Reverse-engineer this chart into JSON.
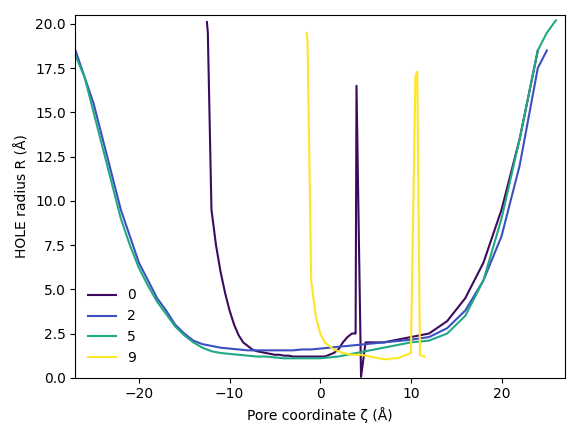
{
  "title": "",
  "xlabel": "Pore coordinate ζ (Å)",
  "ylabel": "HOLE radius R (Å)",
  "legend_labels": [
    "0",
    "2",
    "5",
    "9"
  ],
  "colors": [
    "#3d0a5e",
    "#3b50c0",
    "#22a884",
    "#fde725"
  ],
  "xlim": [
    -27,
    27
  ],
  "ylim": [
    0,
    20.5
  ],
  "figsize": [
    5.8,
    4.38
  ],
  "dpi": 100,
  "series": {
    "0": {
      "zeta": [
        -12.5,
        -12.4,
        -12.0,
        -11.5,
        -11.0,
        -10.5,
        -10.0,
        -9.5,
        -9.0,
        -8.5,
        -8.0,
        -7.5,
        -7.0,
        -6.5,
        -6.0,
        -5.5,
        -5.0,
        -4.5,
        -4.0,
        -3.5,
        -3.0,
        -2.5,
        -2.0,
        -1.5,
        -1.0,
        -0.5,
        0.0,
        0.5,
        1.0,
        1.5,
        2.0,
        2.5,
        3.0,
        3.5,
        3.6,
        3.7,
        3.8,
        3.9,
        4.0,
        4.5,
        5.0,
        5.1,
        5.2,
        5.3,
        5.4,
        5.5,
        6.0,
        6.5,
        7.0,
        7.5,
        8.0,
        9.0,
        10.0,
        12.0,
        14.0,
        16.0,
        18.0,
        20.0,
        22.0,
        24.0
      ],
      "R": [
        20.1,
        19.5,
        9.5,
        7.5,
        6.0,
        4.8,
        3.8,
        3.0,
        2.4,
        2.0,
        1.8,
        1.6,
        1.5,
        1.45,
        1.4,
        1.35,
        1.3,
        1.3,
        1.25,
        1.25,
        1.2,
        1.2,
        1.2,
        1.2,
        1.2,
        1.2,
        1.2,
        1.2,
        1.3,
        1.4,
        1.6,
        2.0,
        2.3,
        2.5,
        2.5,
        2.5,
        2.5,
        2.5,
        16.5,
        0.05,
        2.0,
        2.0,
        2.0,
        2.0,
        2.0,
        2.0,
        2.0,
        2.0,
        2.0,
        2.05,
        2.1,
        2.2,
        2.3,
        2.5,
        3.2,
        4.5,
        6.5,
        9.5,
        13.5,
        18.5
      ]
    },
    "2": {
      "zeta": [
        -27,
        -26,
        -25,
        -24,
        -23,
        -22,
        -21,
        -20,
        -19,
        -18,
        -17,
        -16,
        -15,
        -14,
        -13,
        -12,
        -11,
        -10,
        -9,
        -8,
        -7,
        -6,
        -5,
        -4,
        -3,
        -2,
        -1,
        0,
        1,
        2,
        3,
        4,
        5,
        6,
        7,
        8,
        9,
        10,
        12,
        14,
        16,
        18,
        20,
        22,
        24,
        25
      ],
      "R": [
        18.5,
        17.0,
        15.5,
        13.5,
        11.5,
        9.5,
        8.0,
        6.5,
        5.5,
        4.5,
        3.8,
        3.0,
        2.5,
        2.1,
        1.9,
        1.8,
        1.7,
        1.65,
        1.6,
        1.55,
        1.55,
        1.55,
        1.55,
        1.55,
        1.55,
        1.6,
        1.6,
        1.65,
        1.7,
        1.75,
        1.8,
        1.85,
        1.9,
        1.95,
        2.0,
        2.05,
        2.1,
        2.15,
        2.3,
        2.8,
        3.8,
        5.5,
        8.0,
        12.0,
        17.5,
        18.5
      ]
    },
    "5": {
      "zeta": [
        -27,
        -26,
        -25,
        -24,
        -23,
        -22,
        -21,
        -20,
        -19,
        -18,
        -17,
        -16,
        -15,
        -14,
        -13,
        -12,
        -11,
        -10,
        -9,
        -8,
        -7,
        -6,
        -5,
        -4,
        -3,
        -2,
        -1,
        0,
        1,
        2,
        3,
        4,
        5,
        6,
        7,
        8,
        9,
        10,
        12,
        14,
        16,
        18,
        20,
        22,
        24,
        25,
        26
      ],
      "R": [
        18.2,
        17.0,
        15.0,
        13.0,
        11.0,
        9.0,
        7.5,
        6.2,
        5.2,
        4.3,
        3.6,
        2.9,
        2.4,
        2.0,
        1.7,
        1.5,
        1.4,
        1.35,
        1.3,
        1.25,
        1.2,
        1.2,
        1.15,
        1.1,
        1.1,
        1.1,
        1.1,
        1.1,
        1.15,
        1.2,
        1.3,
        1.4,
        1.5,
        1.6,
        1.7,
        1.8,
        1.9,
        2.0,
        2.1,
        2.5,
        3.5,
        5.5,
        9.0,
        13.5,
        18.5,
        19.5,
        20.2
      ]
    },
    "9": {
      "zeta": [
        -1.5,
        -1.4,
        -1.0,
        -0.5,
        0.0,
        0.5,
        1.0,
        1.5,
        2.0,
        2.5,
        3.0,
        3.5,
        4.0,
        4.5,
        5.0,
        5.5,
        6.0,
        6.5,
        7.0,
        7.5,
        8.0,
        8.5,
        9.0,
        9.5,
        10.0,
        10.5,
        10.6,
        10.7,
        11.0,
        11.5
      ],
      "R": [
        19.5,
        19.0,
        5.5,
        3.5,
        2.5,
        2.0,
        1.8,
        1.6,
        1.5,
        1.4,
        1.35,
        1.3,
        1.3,
        1.3,
        1.25,
        1.2,
        1.15,
        1.1,
        1.05,
        1.05,
        1.1,
        1.1,
        1.2,
        1.3,
        1.4,
        17.0,
        17.2,
        17.3,
        1.3,
        1.2
      ]
    }
  }
}
